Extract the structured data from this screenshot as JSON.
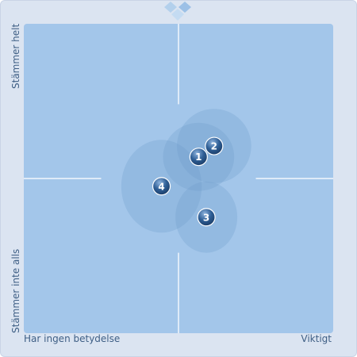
{
  "chart_data": {
    "type": "scatter",
    "x_label_left": "Har ingen betydelse",
    "x_label_right": "Viktigt",
    "y_label_top": "Stämmer helt",
    "y_label_bottom": "Stämmer inte alls",
    "xlim": [
      -1,
      1
    ],
    "ylim": [
      -1,
      1
    ],
    "points": [
      {
        "label": "1",
        "x": 0.13,
        "y": 0.14,
        "spread_x": 0.23,
        "spread_y": 0.22
      },
      {
        "label": "2",
        "x": 0.23,
        "y": 0.21,
        "spread_x": 0.24,
        "spread_y": 0.24
      },
      {
        "label": "3",
        "x": 0.18,
        "y": -0.25,
        "spread_x": 0.2,
        "spread_y": 0.23
      },
      {
        "label": "4",
        "x": -0.11,
        "y": -0.05,
        "spread_x": 0.26,
        "spread_y": 0.3
      }
    ]
  },
  "colors": {
    "background": "#dbe4f1",
    "plot": "#a3c6ea",
    "ellipse": "#6d99c9",
    "marker": "#2f5f96",
    "text": "#3f5f85"
  }
}
